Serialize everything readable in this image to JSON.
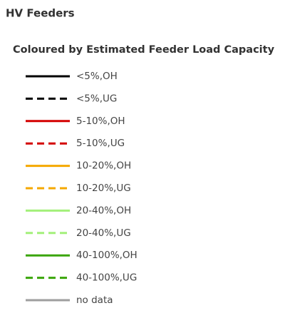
{
  "panel": {
    "title": "HV Feeders",
    "subtitle": "Coloured by Estimated Feeder Load Capacity",
    "items": [
      {
        "label": "<5%,OH",
        "color": "#000000",
        "dashed": false
      },
      {
        "label": "<5%,UG",
        "color": "#000000",
        "dashed": true
      },
      {
        "label": "5-10%,OH",
        "color": "#d40000",
        "dashed": false
      },
      {
        "label": "5-10%,UG",
        "color": "#d40000",
        "dashed": true
      },
      {
        "label": "10-20%,OH",
        "color": "#f5a800",
        "dashed": false
      },
      {
        "label": "10-20%,UG",
        "color": "#f5a800",
        "dashed": true
      },
      {
        "label": "20-40%,OH",
        "color": "#a3f07a",
        "dashed": false
      },
      {
        "label": "20-40%,UG",
        "color": "#a3f07a",
        "dashed": true
      },
      {
        "label": "40-100%,OH",
        "color": "#3aa50a",
        "dashed": false
      },
      {
        "label": "40-100%,UG",
        "color": "#3aa50a",
        "dashed": true
      },
      {
        "label": "no data",
        "color": "#9e9e9e",
        "dashed": false
      }
    ]
  }
}
